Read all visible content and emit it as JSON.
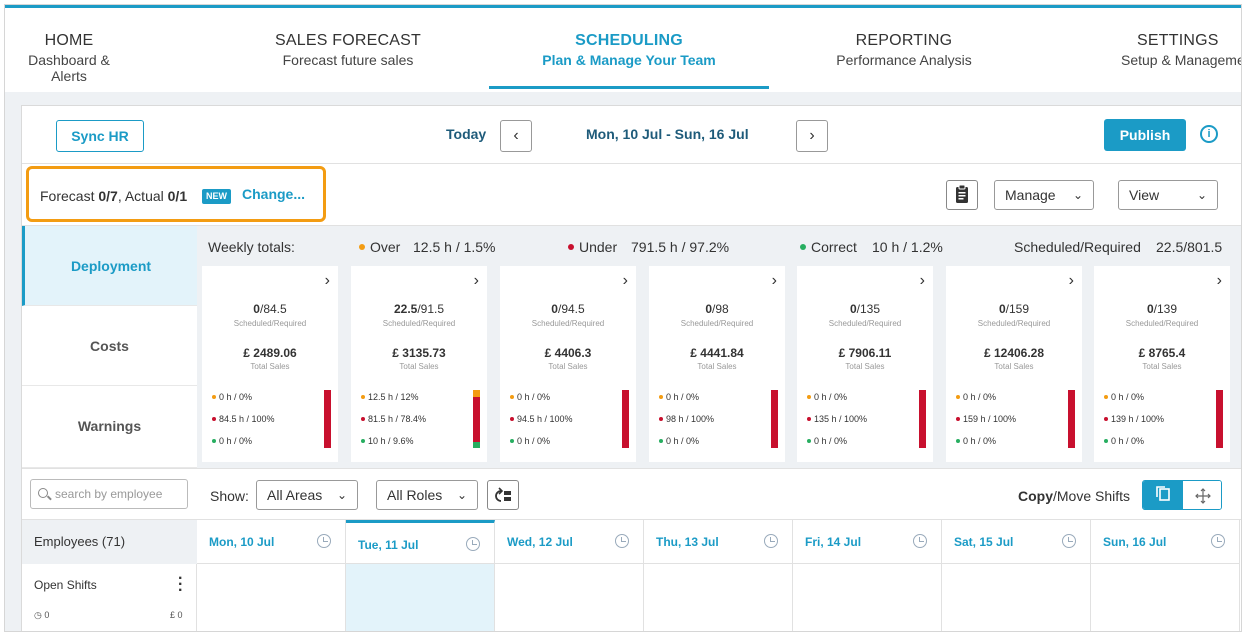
{
  "nav": [
    {
      "title": "HOME",
      "subtitle": "Dashboard & Alerts"
    },
    {
      "title": "SALES FORECAST",
      "subtitle": "Forecast future sales"
    },
    {
      "title": "SCHEDULING",
      "subtitle": "Plan & Manage Your Team"
    },
    {
      "title": "REPORTING",
      "subtitle": "Performance Analysis"
    },
    {
      "title": "SETTINGS",
      "subtitle": "Setup & Management"
    }
  ],
  "toolbar": {
    "sync_label": "Sync HR",
    "today_label": "Today",
    "prev_icon": "‹",
    "next_icon": "›",
    "date_range": "Mon, 10 Jul - Sun, 16 Jul",
    "publish_label": "Publish",
    "info_icon": "i"
  },
  "forecast": {
    "forecast_label": "Forecast ",
    "forecast_value": "0/7",
    "actual_label": ",  Actual ",
    "actual_value": "0/1",
    "new_badge": "NEW",
    "change_label": "Change...",
    "manage_label": "Manage",
    "view_label": "View"
  },
  "side_tabs": [
    "Deployment",
    "Costs",
    "Warnings"
  ],
  "weekly": {
    "label": "Weekly totals:",
    "over_label": "Over",
    "over_value": "12.5 h  /  1.5%",
    "under_label": "Under",
    "under_value": "791.5 h  /  97.2%",
    "correct_label": "Correct",
    "correct_value": "10 h  /  1.2%",
    "sr_label": "Scheduled/Required",
    "sr_value": "22.5/801.5"
  },
  "colors": {
    "accent": "#1b9bc6",
    "over": "#f39c12",
    "under": "#c8102e",
    "correct": "#27ae60",
    "highlight": "#f39c12"
  },
  "card_labels": {
    "sched_sub": "Scheduled/Required",
    "sales_sub": "Total Sales"
  },
  "days": [
    {
      "sched": "0",
      "req": "/84.5",
      "sales": "£ 2489.06",
      "over": "0 h  /  0%",
      "under": "84.5 h  /  100%",
      "correct": "0 h  /  0%",
      "bar": {
        "over": 0,
        "under": 1,
        "correct": 0
      }
    },
    {
      "sched": "22.5",
      "req": "/91.5",
      "sales": "£ 3135.73",
      "over": "12.5 h  /  12%",
      "under": "81.5 h  /  78.4%",
      "correct": "10 h  /  9.6%",
      "bar": {
        "over": 0.12,
        "under": 0.784,
        "correct": 0.096
      }
    },
    {
      "sched": "0",
      "req": "/94.5",
      "sales": "£ 4406.3",
      "over": "0 h  /  0%",
      "under": "94.5 h  /  100%",
      "correct": "0 h  /  0%",
      "bar": {
        "over": 0,
        "under": 1,
        "correct": 0
      }
    },
    {
      "sched": "0",
      "req": "/98",
      "sales": "£ 4441.84",
      "over": "0 h  /  0%",
      "under": "98 h  /  100%",
      "correct": "0 h  /  0%",
      "bar": {
        "over": 0,
        "under": 1,
        "correct": 0
      }
    },
    {
      "sched": "0",
      "req": "/135",
      "sales": "£ 7906.11",
      "over": "0 h  /  0%",
      "under": "135 h  /  100%",
      "correct": "0 h  /  0%",
      "bar": {
        "over": 0,
        "under": 1,
        "correct": 0
      }
    },
    {
      "sched": "0",
      "req": "/159",
      "sales": "£ 12406.28",
      "over": "0 h  /  0%",
      "under": "159 h  /  100%",
      "correct": "0 h  /  0%",
      "bar": {
        "over": 0,
        "under": 1,
        "correct": 0
      }
    },
    {
      "sched": "0",
      "req": "/139",
      "sales": "£ 8765.4",
      "over": "0 h  /  0%",
      "under": "139 h  /  100%",
      "correct": "0 h  /  0%",
      "bar": {
        "over": 0,
        "under": 1,
        "correct": 0
      }
    }
  ],
  "filters": {
    "search_placeholder": "search by employee",
    "show_label": "Show:",
    "areas_label": "All Areas",
    "roles_label": "All Roles",
    "copy_bold": "Copy",
    "copy_rest": "/Move Shifts"
  },
  "grid": {
    "employees_label": "Employees (71)",
    "day_headers": [
      "Mon, 10 Jul",
      "Tue, 11 Jul",
      "Wed, 12 Jul",
      "Thu, 13 Jul",
      "Fri, 14 Jul",
      "Sat, 15 Jul",
      "Sun, 16 Jul"
    ],
    "selected_index": 1,
    "open_shifts_label": "Open Shifts",
    "open_hours": "0",
    "open_cost": "£ 0"
  }
}
